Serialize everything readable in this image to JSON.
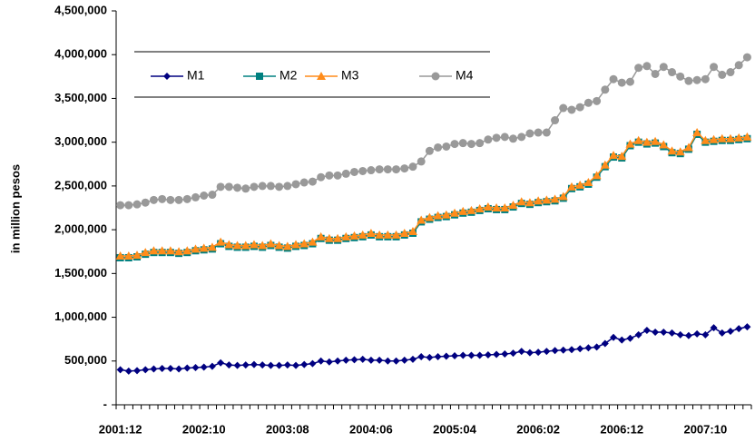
{
  "chart_data": {
    "type": "line",
    "y_label": "in million pesos",
    "categories": [
      "2001:12",
      null,
      null,
      null,
      null,
      null,
      null,
      null,
      null,
      null,
      "2002:10",
      null,
      null,
      null,
      null,
      null,
      null,
      null,
      null,
      null,
      "2003:08",
      null,
      null,
      null,
      null,
      null,
      null,
      null,
      null,
      null,
      "2004:06",
      null,
      null,
      null,
      null,
      null,
      null,
      null,
      null,
      null,
      "2005:04",
      null,
      null,
      null,
      null,
      null,
      null,
      null,
      null,
      null,
      "2006:02",
      null,
      null,
      null,
      null,
      null,
      null,
      null,
      null,
      null,
      "2006:12",
      null,
      null,
      null,
      null,
      null,
      null,
      null,
      null,
      null,
      "2007:10",
      null,
      null,
      null,
      null,
      null
    ],
    "ylim": [
      0,
      4500000
    ],
    "yticks": [
      {
        "value": 0,
        "label": "-"
      },
      {
        "value": 500000,
        "label": "500,000"
      },
      {
        "value": 1000000,
        "label": "1,000,000"
      },
      {
        "value": 1500000,
        "label": "1,500,000"
      },
      {
        "value": 2000000,
        "label": "2,000,000"
      },
      {
        "value": 2500000,
        "label": "2,500,000"
      },
      {
        "value": 3000000,
        "label": "3,000,000"
      },
      {
        "value": 3500000,
        "label": "3,500,000"
      },
      {
        "value": 4000000,
        "label": "4,000,000"
      },
      {
        "value": 4500000,
        "label": "4,500,000"
      }
    ],
    "legend": "upper left",
    "series": [
      {
        "name": "M1",
        "color": "#000080",
        "marker": "diamond",
        "values": [
          400000,
          385000,
          390000,
          400000,
          410000,
          415000,
          415000,
          410000,
          420000,
          425000,
          430000,
          440000,
          480000,
          455000,
          450000,
          455000,
          460000,
          455000,
          450000,
          450000,
          455000,
          450000,
          460000,
          470000,
          500000,
          490000,
          500000,
          510000,
          515000,
          520000,
          510000,
          510000,
          500000,
          500000,
          510000,
          520000,
          550000,
          540000,
          550000,
          555000,
          560000,
          565000,
          565000,
          565000,
          570000,
          575000,
          580000,
          590000,
          610000,
          595000,
          600000,
          610000,
          620000,
          625000,
          630000,
          640000,
          650000,
          660000,
          700000,
          770000,
          740000,
          760000,
          800000,
          850000,
          830000,
          830000,
          820000,
          800000,
          790000,
          810000,
          800000,
          880000,
          820000,
          840000,
          870000,
          890000
        ]
      },
      {
        "name": "M2",
        "color": "#008080",
        "marker": "square",
        "values": [
          1680000,
          1680000,
          1690000,
          1720000,
          1740000,
          1740000,
          1740000,
          1730000,
          1740000,
          1760000,
          1770000,
          1780000,
          1840000,
          1810000,
          1800000,
          1800000,
          1810000,
          1800000,
          1820000,
          1800000,
          1790000,
          1810000,
          1820000,
          1840000,
          1900000,
          1880000,
          1880000,
          1900000,
          1910000,
          1920000,
          1940000,
          1920000,
          1920000,
          1920000,
          1940000,
          1960000,
          2090000,
          2120000,
          2140000,
          2150000,
          2170000,
          2190000,
          2200000,
          2220000,
          2240000,
          2230000,
          2230000,
          2260000,
          2300000,
          2290000,
          2310000,
          2320000,
          2330000,
          2360000,
          2470000,
          2490000,
          2520000,
          2600000,
          2720000,
          2830000,
          2820000,
          2960000,
          3000000,
          2980000,
          2990000,
          2950000,
          2880000,
          2870000,
          2920000,
          3090000,
          3000000,
          3010000,
          3020000,
          3020000,
          3030000,
          3040000
        ]
      },
      {
        "name": "M3",
        "color": "#ff8c1a",
        "marker": "triangle",
        "values": [
          1700000,
          1700000,
          1710000,
          1740000,
          1760000,
          1760000,
          1760000,
          1750000,
          1760000,
          1780000,
          1790000,
          1800000,
          1860000,
          1830000,
          1820000,
          1820000,
          1830000,
          1820000,
          1840000,
          1820000,
          1810000,
          1830000,
          1840000,
          1860000,
          1920000,
          1900000,
          1900000,
          1920000,
          1930000,
          1940000,
          1960000,
          1940000,
          1940000,
          1940000,
          1960000,
          1980000,
          2110000,
          2140000,
          2160000,
          2170000,
          2190000,
          2210000,
          2220000,
          2240000,
          2260000,
          2250000,
          2250000,
          2280000,
          2320000,
          2310000,
          2330000,
          2340000,
          2350000,
          2380000,
          2490000,
          2510000,
          2540000,
          2620000,
          2740000,
          2850000,
          2840000,
          2980000,
          3020000,
          3000000,
          3010000,
          2970000,
          2900000,
          2890000,
          2940000,
          3110000,
          3020000,
          3030000,
          3040000,
          3040000,
          3050000,
          3060000
        ]
      },
      {
        "name": "M4",
        "color": "#999999",
        "marker": "circle",
        "values": [
          2280000,
          2280000,
          2290000,
          2310000,
          2340000,
          2350000,
          2340000,
          2340000,
          2350000,
          2370000,
          2390000,
          2400000,
          2490000,
          2490000,
          2480000,
          2470000,
          2490000,
          2500000,
          2500000,
          2490000,
          2500000,
          2520000,
          2540000,
          2550000,
          2600000,
          2620000,
          2620000,
          2640000,
          2660000,
          2670000,
          2680000,
          2690000,
          2690000,
          2690000,
          2700000,
          2720000,
          2780000,
          2900000,
          2940000,
          2950000,
          2980000,
          2990000,
          2980000,
          2990000,
          3030000,
          3050000,
          3060000,
          3040000,
          3060000,
          3100000,
          3110000,
          3110000,
          3250000,
          3390000,
          3370000,
          3400000,
          3450000,
          3470000,
          3600000,
          3720000,
          3680000,
          3690000,
          3850000,
          3870000,
          3780000,
          3860000,
          3800000,
          3750000,
          3700000,
          3710000,
          3720000,
          3860000,
          3770000,
          3800000,
          3880000,
          3970000
        ]
      }
    ]
  }
}
